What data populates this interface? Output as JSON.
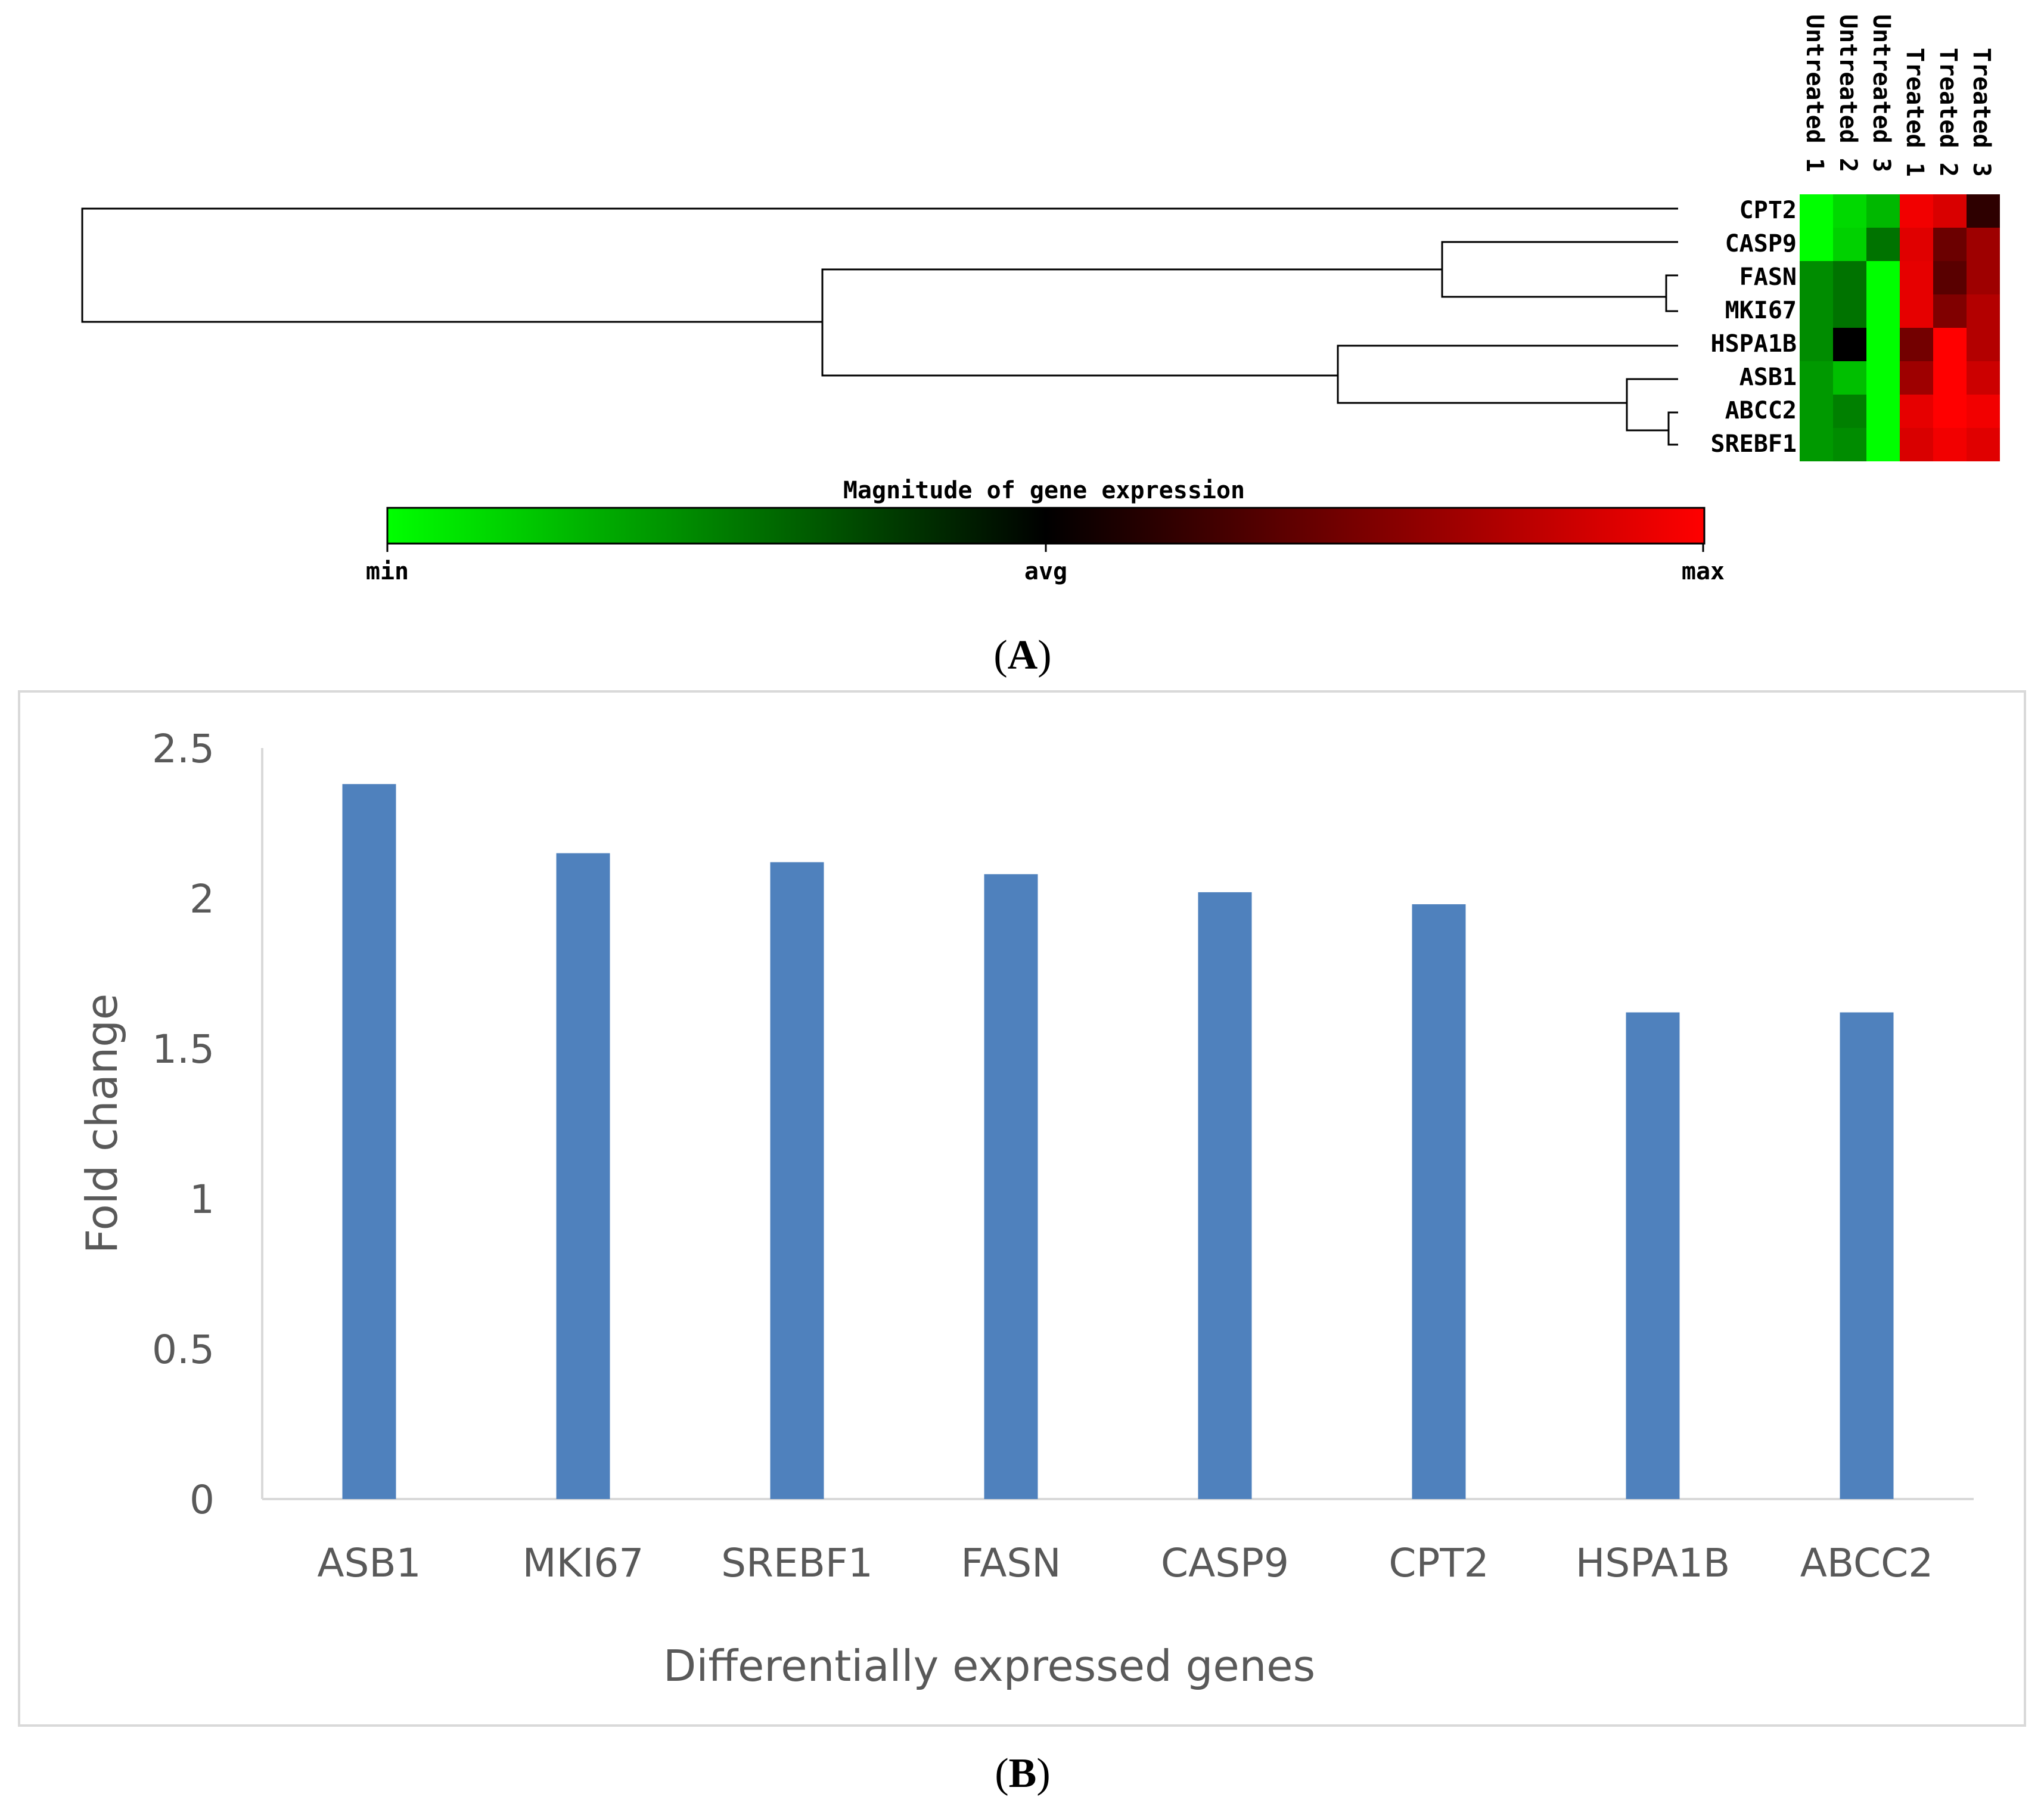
{
  "chart_data": [
    {
      "type": "heatmap",
      "panel_label": "A",
      "columns": [
        "Untreated 1",
        "Untreated 2",
        "Untreated 3",
        "Treated 1",
        "Treated 2",
        "Treated 3"
      ],
      "rows": [
        "CPT2",
        "CASP9",
        "FASN",
        "MKI67",
        "HSPA1B",
        "ASB1",
        "ABCC2",
        "SREBF1"
      ],
      "values": [
        [
          -1.0,
          -0.85,
          -0.72,
          0.95,
          0.85,
          0.18
        ],
        [
          -1.0,
          -0.82,
          -0.45,
          0.88,
          0.42,
          0.62
        ],
        [
          -0.55,
          -0.45,
          -1.0,
          0.9,
          0.35,
          0.62
        ],
        [
          -0.55,
          -0.45,
          -1.0,
          0.9,
          0.5,
          0.7
        ],
        [
          -0.55,
          0.0,
          -1.0,
          0.45,
          1.0,
          0.7
        ],
        [
          -0.6,
          -0.75,
          -1.0,
          0.62,
          1.0,
          0.8
        ],
        [
          -0.6,
          -0.5,
          -1.0,
          0.9,
          1.0,
          0.95
        ],
        [
          -0.6,
          -0.55,
          -1.0,
          0.85,
          0.95,
          0.88
        ]
      ],
      "colorbar": {
        "title": "Magnitude of gene expression",
        "min_label": "min",
        "mid_label": "avg",
        "max_label": "max",
        "low_color": "#00ff00",
        "mid_color": "#000000",
        "high_color": "#ff0000"
      },
      "dendrogram": "row dendrogram on left: CPT2 separate; (CASP9,(FASN,MKI67)) joined with (HSPA1B,(ASB1,(ABCC2,SREBF1)))"
    },
    {
      "type": "bar",
      "panel_label": "B",
      "categories": [
        "ASB1",
        "MKI67",
        "SREBF1",
        "FASN",
        "CASP9",
        "CPT2",
        "HSPA1B",
        "ABCC2"
      ],
      "values": [
        2.38,
        2.15,
        2.12,
        2.08,
        2.02,
        1.98,
        1.62,
        1.62
      ],
      "yticks": [
        "0",
        "0.5",
        "1",
        "1.5",
        "2",
        "2.5"
      ],
      "ylim": [
        0,
        2.5
      ],
      "xlabel": "Differentially expressed genes",
      "ylabel": "Fold change",
      "title": "",
      "bar_color": "#4f81bd",
      "grid": false
    }
  ]
}
